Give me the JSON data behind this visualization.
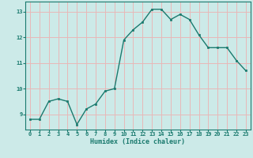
{
  "x": [
    0,
    1,
    2,
    3,
    4,
    5,
    6,
    7,
    8,
    9,
    10,
    11,
    12,
    13,
    14,
    15,
    16,
    17,
    18,
    19,
    20,
    21,
    22,
    23
  ],
  "y": [
    8.8,
    8.8,
    9.5,
    9.6,
    9.5,
    8.6,
    9.2,
    9.4,
    9.9,
    10.0,
    11.9,
    12.3,
    12.6,
    13.1,
    13.1,
    12.7,
    12.9,
    12.7,
    12.1,
    11.6,
    11.6,
    11.6,
    11.1,
    10.7
  ],
  "xlim": [
    -0.5,
    23.5
  ],
  "ylim": [
    8.4,
    13.4
  ],
  "yticks": [
    9,
    10,
    11,
    12,
    13
  ],
  "xticks": [
    0,
    1,
    2,
    3,
    4,
    5,
    6,
    7,
    8,
    9,
    10,
    11,
    12,
    13,
    14,
    15,
    16,
    17,
    18,
    19,
    20,
    21,
    22,
    23
  ],
  "xlabel": "Humidex (Indice chaleur)",
  "line_color": "#1a7a6e",
  "marker_color": "#1a7a6e",
  "bg_color": "#cceae8",
  "grid_color": "#e8b8b8",
  "tick_color": "#1a7a6e",
  "label_color": "#1a7a6e"
}
